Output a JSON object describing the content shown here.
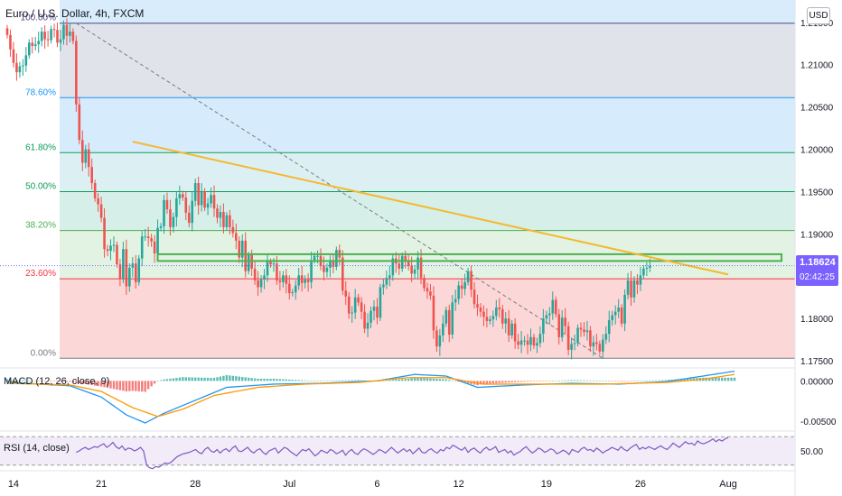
{
  "header": {
    "title": "Euro / U.S. Dollar, 4h, FXCM",
    "currency_button": "USD"
  },
  "price_tag": {
    "price": "1.18624",
    "countdown": "02:42:25"
  },
  "indicators": {
    "macd_label": "MACD (12, 26, close, 9)",
    "rsi_label": "RSI (14, close)"
  },
  "colors": {
    "up": "#26a69a",
    "down": "#ef5350",
    "trendline": "#f5b82e",
    "fib_line": "#4a4a8a",
    "macd_line": "#2196f3",
    "signal_line": "#ff9800",
    "rsi_line": "#7e57c2",
    "resistance_box": "#4caf50",
    "price_tag": "#7b61ff"
  },
  "chart_data": [
    {
      "type": "candlestick",
      "pane": "price",
      "symbol": "EURUSD",
      "timeframe": "4h",
      "source": "FXCM",
      "y_axis": {
        "ylim": [
          1.17416,
          1.21764
        ],
        "ticks": [
          "1.21500",
          "1.21000",
          "1.20500",
          "1.20000",
          "1.19500",
          "1.19000",
          "1.18500",
          "1.18000",
          "1.17500"
        ]
      },
      "x_axis": {
        "ticks": [
          "14",
          "21",
          "28",
          "Jul",
          "6",
          "12",
          "19",
          "26",
          "Aug"
        ],
        "tick_index": [
          2,
          30,
          60,
          90,
          118,
          144,
          172,
          202,
          230
        ]
      },
      "close": [
        1.2135,
        1.2118,
        1.2102,
        1.2091,
        1.2098,
        1.2099,
        1.2111,
        1.2126,
        1.2122,
        1.2124,
        1.2128,
        1.2139,
        1.213,
        1.2129,
        1.2142,
        1.2141,
        1.2126,
        1.213,
        1.2147,
        1.2134,
        1.2139,
        1.2128,
        1.2053,
        1.2011,
        1.1984,
        1.2,
        1.1979,
        1.196,
        1.1942,
        1.1935,
        1.1919,
        1.1882,
        1.188,
        1.1886,
        1.1887,
        1.1864,
        1.1847,
        1.1882,
        1.1838,
        1.186,
        1.1865,
        1.1843,
        1.1871,
        1.1897,
        1.1897,
        1.1895,
        1.1891,
        1.1877,
        1.1907,
        1.1909,
        1.194,
        1.1929,
        1.1908,
        1.192,
        1.1942,
        1.1947,
        1.1943,
        1.1925,
        1.1913,
        1.1939,
        1.196,
        1.1934,
        1.195,
        1.1931,
        1.1936,
        1.1946,
        1.193,
        1.1919,
        1.1926,
        1.1908,
        1.1922,
        1.1908,
        1.1901,
        1.1892,
        1.1872,
        1.1892,
        1.1856,
        1.1875,
        1.1859,
        1.1845,
        1.1837,
        1.1846,
        1.1851,
        1.1867,
        1.1864,
        1.1865,
        1.1845,
        1.1843,
        1.1851,
        1.1841,
        1.183,
        1.1831,
        1.1839,
        1.1851,
        1.1842,
        1.1846,
        1.1843,
        1.1869,
        1.1874,
        1.1874,
        1.1862,
        1.1855,
        1.186,
        1.1867,
        1.1861,
        1.1881,
        1.1872,
        1.1833,
        1.1826,
        1.1806,
        1.1807,
        1.1825,
        1.1819,
        1.1808,
        1.1788,
        1.1795,
        1.1809,
        1.1814,
        1.1801,
        1.1837,
        1.184,
        1.1848,
        1.1851,
        1.1871,
        1.1865,
        1.1859,
        1.1874,
        1.1868,
        1.1862,
        1.1853,
        1.1858,
        1.1872,
        1.1848,
        1.1836,
        1.1832,
        1.1827,
        1.1786,
        1.1767,
        1.178,
        1.1794,
        1.181,
        1.1781,
        1.1819,
        1.1823,
        1.1839,
        1.1835,
        1.1843,
        1.1856,
        1.1834,
        1.1817,
        1.1813,
        1.1808,
        1.1802,
        1.1797,
        1.1799,
        1.1803,
        1.1813,
        1.1811,
        1.1794,
        1.18,
        1.178,
        1.1794,
        1.1773,
        1.1769,
        1.1774,
        1.1774,
        1.1769,
        1.1778,
        1.1768,
        1.1771,
        1.1782,
        1.18,
        1.1804,
        1.1806,
        1.1822,
        1.1805,
        1.1778,
        1.1801,
        1.1791,
        1.1763,
        1.177,
        1.1771,
        1.1789,
        1.1787,
        1.1784,
        1.1786,
        1.1767,
        1.1772,
        1.177,
        1.1761,
        1.1775,
        1.1782,
        1.1798,
        1.1804,
        1.1808,
        1.1813,
        1.1794,
        1.1828,
        1.1845,
        1.1825,
        1.1845,
        1.184,
        1.1851,
        1.1859,
        1.186,
        1.1862
      ],
      "fibonacci": {
        "levels": [
          {
            "label": "100.00%",
            "price": 1.2149
          },
          {
            "label": "78.60%",
            "price": 1.2061
          },
          {
            "label": "61.80%",
            "price": 1.1996
          },
          {
            "label": "50.00%",
            "price": 1.195
          },
          {
            "label": "38.20%",
            "price": 1.1904
          },
          {
            "label": "23.60%",
            "price": 1.1847
          },
          {
            "label": "0.00%",
            "price": 1.1753
          }
        ]
      },
      "trendline": {
        "from": {
          "index": 40,
          "price": 1.2009
        },
        "to": {
          "index": 230,
          "price": 1.1852
        }
      },
      "fib_diagonal": {
        "from": {
          "index": 22,
          "price": 1.2149
        },
        "to": {
          "index": 190,
          "price": 1.1753
        }
      },
      "resistance_zone": {
        "from_index": 48,
        "to_index": 247,
        "y_top": 1.1876,
        "y_bottom": 1.1868
      },
      "current_price": 1.18624
    },
    {
      "type": "line",
      "pane": "macd",
      "y_axis": {
        "ylim": [
          -0.0062,
          0.0016
        ],
        "ticks": [
          "0.00000",
          "-0.00500"
        ]
      },
      "series": [
        {
          "name": "MACD",
          "points": [
            [
              0,
              -0.0001
            ],
            [
              10,
              -0.0004
            ],
            [
              20,
              -0.0006
            ],
            [
              30,
              -0.002
            ],
            [
              38,
              -0.0042
            ],
            [
              44,
              -0.0052
            ],
            [
              50,
              -0.004
            ],
            [
              60,
              -0.0024
            ],
            [
              70,
              -0.0008
            ],
            [
              85,
              -0.0004
            ],
            [
              100,
              -0.0003
            ],
            [
              118,
              0.0
            ],
            [
              130,
              0.0008
            ],
            [
              140,
              0.0006
            ],
            [
              150,
              -0.0008
            ],
            [
              165,
              -0.0005
            ],
            [
              180,
              -0.0003
            ],
            [
              195,
              -0.0004
            ],
            [
              210,
              -0.0001
            ],
            [
              222,
              0.0006
            ],
            [
              232,
              0.0012
            ]
          ]
        },
        {
          "name": "Signal",
          "points": [
            [
              0,
              -0.0003
            ],
            [
              10,
              -0.0004
            ],
            [
              20,
              -0.0005
            ],
            [
              30,
              -0.0013
            ],
            [
              40,
              -0.0033
            ],
            [
              48,
              -0.0044
            ],
            [
              56,
              -0.0035
            ],
            [
              66,
              -0.0018
            ],
            [
              80,
              -0.0008
            ],
            [
              95,
              -0.0004
            ],
            [
              112,
              -0.0002
            ],
            [
              128,
              0.0004
            ],
            [
              140,
              0.0004
            ],
            [
              152,
              -0.0004
            ],
            [
              170,
              -0.0004
            ],
            [
              190,
              -0.0004
            ],
            [
              210,
              -0.0002
            ],
            [
              222,
              0.0002
            ],
            [
              232,
              0.0008
            ]
          ]
        }
      ]
    },
    {
      "type": "line",
      "pane": "rsi",
      "y_axis": {
        "ylim": [
          22,
          78
        ],
        "ticks": [
          "50.00"
        ],
        "band": [
          30,
          70
        ]
      },
      "values": [
        48,
        50,
        53,
        55,
        52,
        54,
        56,
        55,
        58,
        60,
        55,
        58,
        62,
        56,
        53,
        57,
        51,
        54,
        53,
        50,
        52,
        55,
        50,
        30,
        26,
        25,
        28,
        27,
        30,
        33,
        32,
        34,
        38,
        42,
        44,
        46,
        47,
        48,
        50,
        52,
        48,
        46,
        52,
        55,
        50,
        48,
        52,
        47,
        51,
        53,
        49,
        54,
        57,
        50,
        49,
        52,
        55,
        50,
        47,
        51,
        53,
        48,
        45,
        50,
        52,
        54,
        47,
        51,
        55,
        53,
        49,
        46,
        43,
        48,
        52,
        50,
        53,
        48,
        43,
        46,
        51,
        49,
        47,
        52,
        50,
        46,
        48,
        51,
        44,
        49,
        52,
        47,
        45,
        50,
        53,
        51,
        48,
        45,
        48,
        52,
        50,
        47,
        51,
        55,
        51,
        47,
        50,
        53,
        49,
        52,
        46,
        50,
        54,
        48,
        47,
        51,
        53,
        49,
        47,
        52,
        50,
        55,
        53,
        58,
        56,
        53,
        51,
        55,
        48,
        52,
        54,
        50,
        47,
        52,
        55,
        51,
        53,
        56,
        48,
        50,
        52,
        47,
        50,
        44,
        47,
        49,
        53,
        56,
        51,
        47,
        50,
        54,
        52,
        48,
        50,
        53,
        51,
        46,
        48,
        51,
        49,
        45,
        52,
        50,
        48,
        53,
        55,
        51,
        52,
        49,
        54,
        51,
        47,
        50,
        52,
        55,
        53,
        51,
        56,
        52,
        50,
        54,
        57,
        59,
        52,
        55,
        53,
        56,
        54,
        52,
        55,
        57,
        54,
        52,
        56,
        61,
        58,
        55,
        59,
        63,
        60,
        61,
        58,
        64,
        61,
        60,
        62,
        64,
        67,
        63,
        66,
        64,
        67,
        69
      ]
    }
  ]
}
